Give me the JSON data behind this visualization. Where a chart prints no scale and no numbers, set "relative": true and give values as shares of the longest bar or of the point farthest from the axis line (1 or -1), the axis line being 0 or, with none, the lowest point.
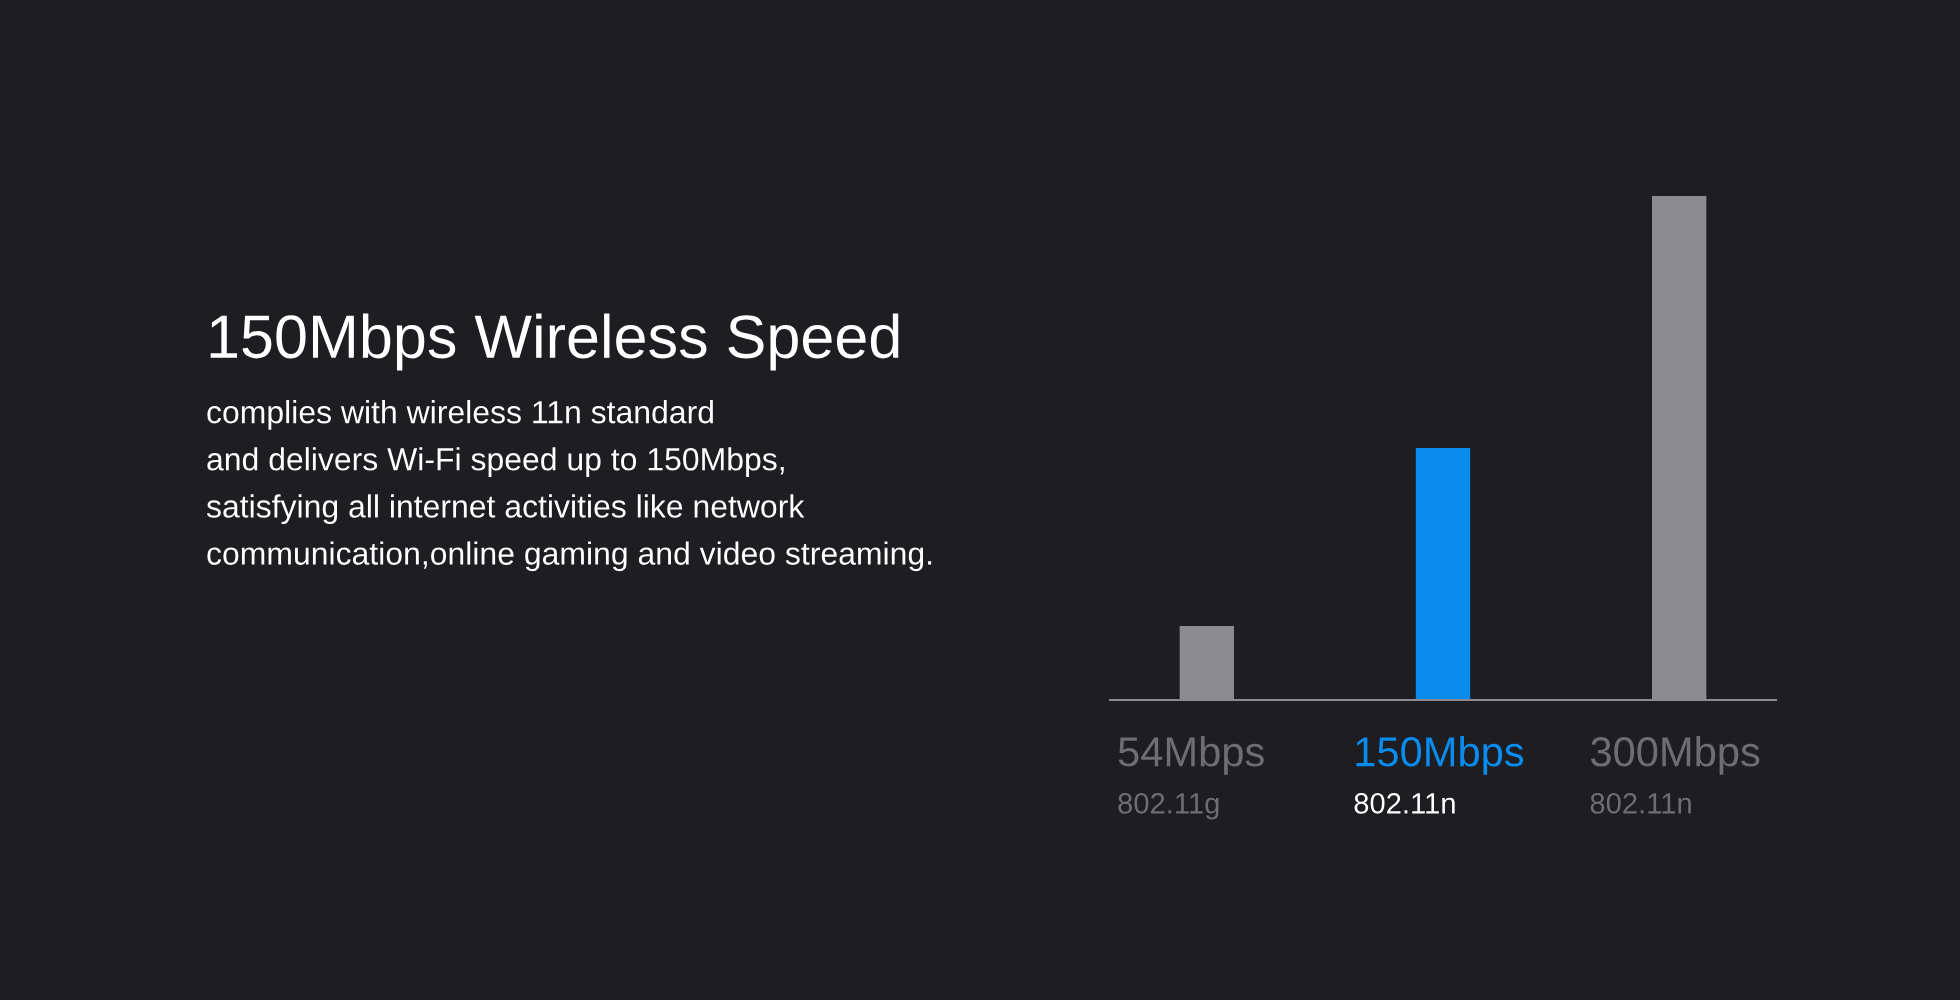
{
  "chart_data": {
    "type": "bar",
    "title": "150Mbps Wireless Speed",
    "subtitle": "complies with wireless 11n standard\nand delivers Wi-Fi speed up to 150Mbps,\nsatisfying all internet activities like network\ncommunication,online gaming and video streaming.",
    "categories": [
      "54Mbps\n802.11g",
      "150Mbps\n802.11n",
      "300Mbps\n802.11n"
    ],
    "values": [
      0.147,
      0.5,
      1
    ],
    "colors": [
      "#8c8c8e",
      "#0a8cee",
      "#8c8c8e"
    ],
    "relative": true
  }
}
